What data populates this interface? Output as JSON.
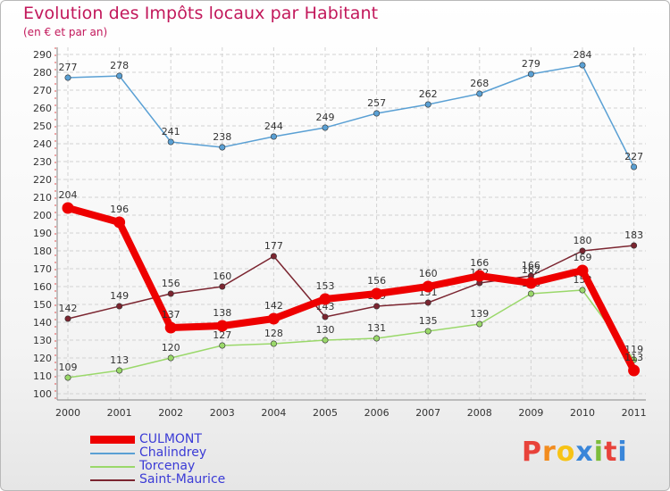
{
  "title": "Evolution des Impôts locaux par Habitant",
  "subtitle": "(en € et par an)",
  "logo": {
    "letters": [
      "P",
      "r",
      "o",
      "x",
      "i",
      "t",
      "i"
    ],
    "colors": [
      "#e8423a",
      "#f28c1e",
      "#f7c315",
      "#3a86d9",
      "#7dbd3a",
      "#e8423a",
      "#3a86d9"
    ]
  },
  "chart_data": {
    "type": "line",
    "title": "Evolution des Impôts locaux par Habitant",
    "subtitle": "(en € et par an)",
    "categories": [
      "2000",
      "2001",
      "2002",
      "2003",
      "2004",
      "2005",
      "2006",
      "2007",
      "2008",
      "2009",
      "2010",
      "2011"
    ],
    "yticks": [
      100,
      110,
      120,
      130,
      140,
      150,
      160,
      170,
      180,
      190,
      200,
      210,
      220,
      230,
      240,
      250,
      260,
      270,
      280,
      290
    ],
    "ylim": [
      100,
      290
    ],
    "grid": true,
    "legend_position": "bottom-left",
    "series": [
      {
        "name": "Chalindrey",
        "color": "#5aa0d4",
        "values": [
          277,
          278,
          241,
          238,
          244,
          249,
          257,
          262,
          268,
          279,
          284,
          227
        ],
        "labels": [
          "277",
          "278",
          "241",
          "238",
          "244",
          "249",
          "257",
          "262",
          "268",
          "279",
          "284",
          "227"
        ],
        "emphasis": false
      },
      {
        "name": "Torcenay",
        "color": "#9ad86a",
        "values": [
          109,
          113,
          120,
          127,
          128,
          130,
          131,
          135,
          139,
          156,
          158,
          119
        ],
        "labels": [
          "109",
          "113",
          "120",
          "127",
          "128",
          "130",
          "131",
          "135",
          "139",
          "156",
          "158",
          "119"
        ],
        "emphasis": false
      },
      {
        "name": "Saint-Maurice",
        "color": "#7b2530",
        "values": [
          142,
          149,
          156,
          160,
          177,
          143,
          149,
          151,
          162,
          166,
          180,
          183
        ],
        "labels": [
          "142",
          "149",
          "156",
          "160",
          "177",
          "143",
          "149",
          "151",
          "162",
          "166",
          "180",
          "183"
        ],
        "emphasis": false
      },
      {
        "name": "CULMONT",
        "color": "#ee0000",
        "values": [
          204,
          196,
          137,
          138,
          142,
          153,
          156,
          160,
          166,
          162,
          169,
          113
        ],
        "labels": [
          "204",
          "196",
          "137",
          "138",
          "142",
          "153",
          "156",
          "160",
          "166",
          "162",
          "169",
          "113"
        ],
        "emphasis": true
      }
    ],
    "legend_order": [
      "CULMONT",
      "Chalindrey",
      "Torcenay",
      "Saint-Maurice"
    ]
  }
}
